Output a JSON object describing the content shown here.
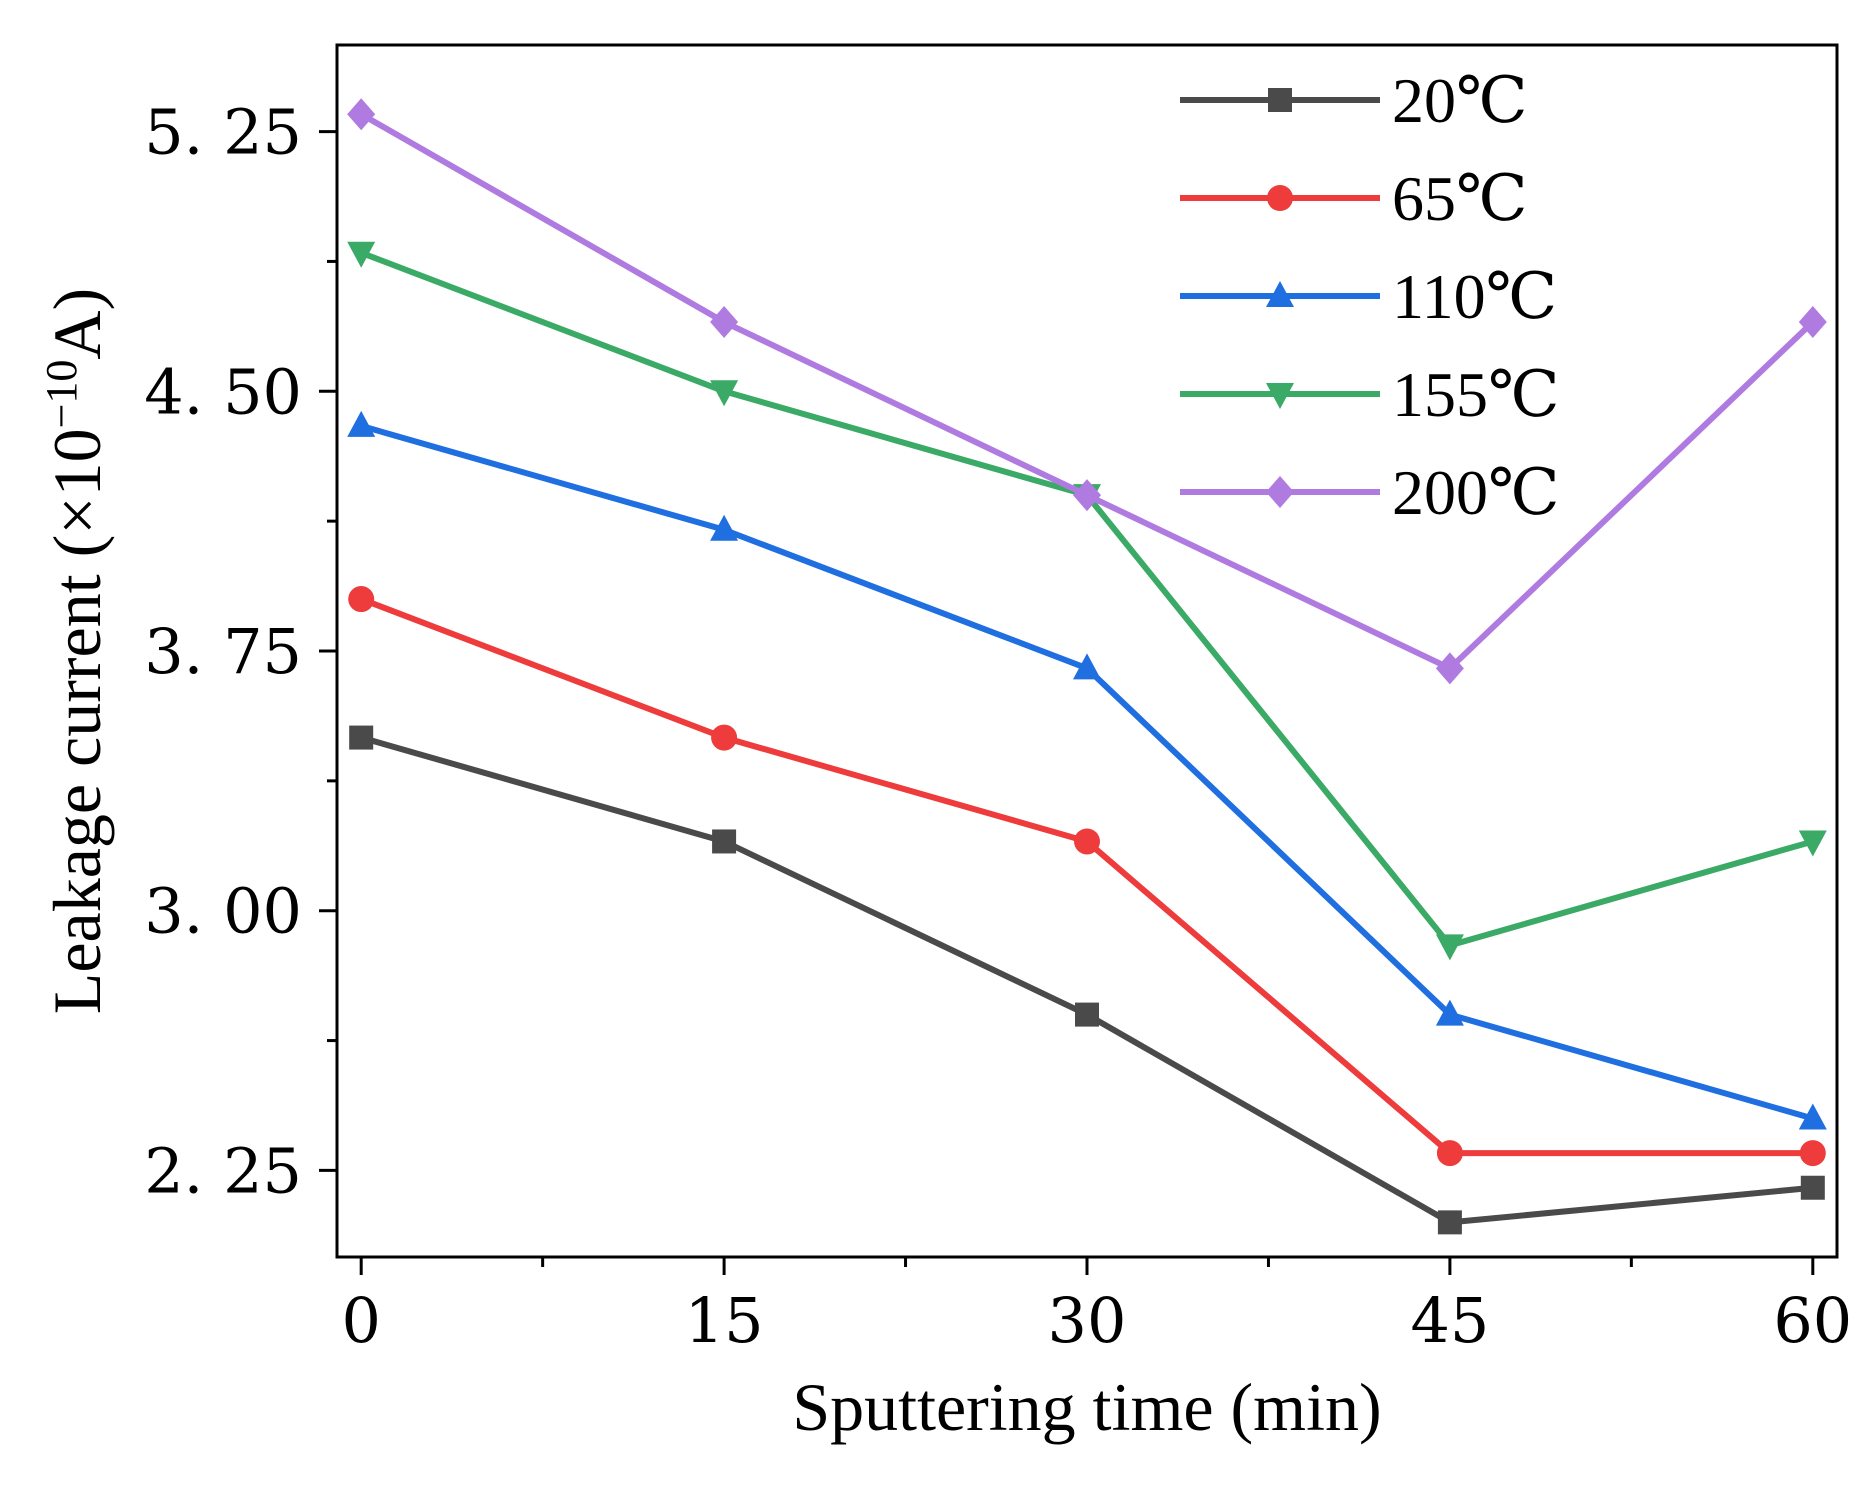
{
  "chart_data": {
    "type": "line",
    "title": "",
    "xlabel": "Sputtering time (min)",
    "ylabel_main": "Leakage current (×10",
    "ylabel_exp": "−10",
    "ylabel_unit": "A)",
    "x": [
      0,
      15,
      30,
      45,
      60
    ],
    "xlim": [
      -1,
      61
    ],
    "ylim": [
      2.0,
      5.5
    ],
    "xticks": [
      0,
      15,
      30,
      45,
      60
    ],
    "xtick_labels": [
      "0",
      "15",
      "30",
      "45",
      "60"
    ],
    "yticks": [
      2.25,
      3.0,
      3.75,
      4.5,
      5.25
    ],
    "ytick_labels": [
      "2. 25",
      "3. 00",
      "3. 75",
      "4. 50",
      "5. 25"
    ],
    "legend_position": "top-right",
    "series": [
      {
        "name": "20℃",
        "color": "#4a4a4a",
        "marker": "square",
        "values": [
          3.5,
          3.2,
          2.7,
          2.1,
          2.2
        ]
      },
      {
        "name": "65℃",
        "color": "#ee3b3b",
        "marker": "circle",
        "values": [
          3.9,
          3.5,
          3.2,
          2.3,
          2.3
        ]
      },
      {
        "name": "110℃",
        "color": "#1f6fe0",
        "marker": "triangle-up",
        "values": [
          4.4,
          4.1,
          3.7,
          2.7,
          2.4
        ]
      },
      {
        "name": "155℃",
        "color": "#3aaa66",
        "marker": "triangle-down",
        "values": [
          4.9,
          4.5,
          4.2,
          2.9,
          3.2
        ]
      },
      {
        "name": "200℃",
        "color": "#b07be0",
        "marker": "diamond",
        "values": [
          5.3,
          4.7,
          4.2,
          3.7,
          4.7
        ]
      }
    ]
  }
}
